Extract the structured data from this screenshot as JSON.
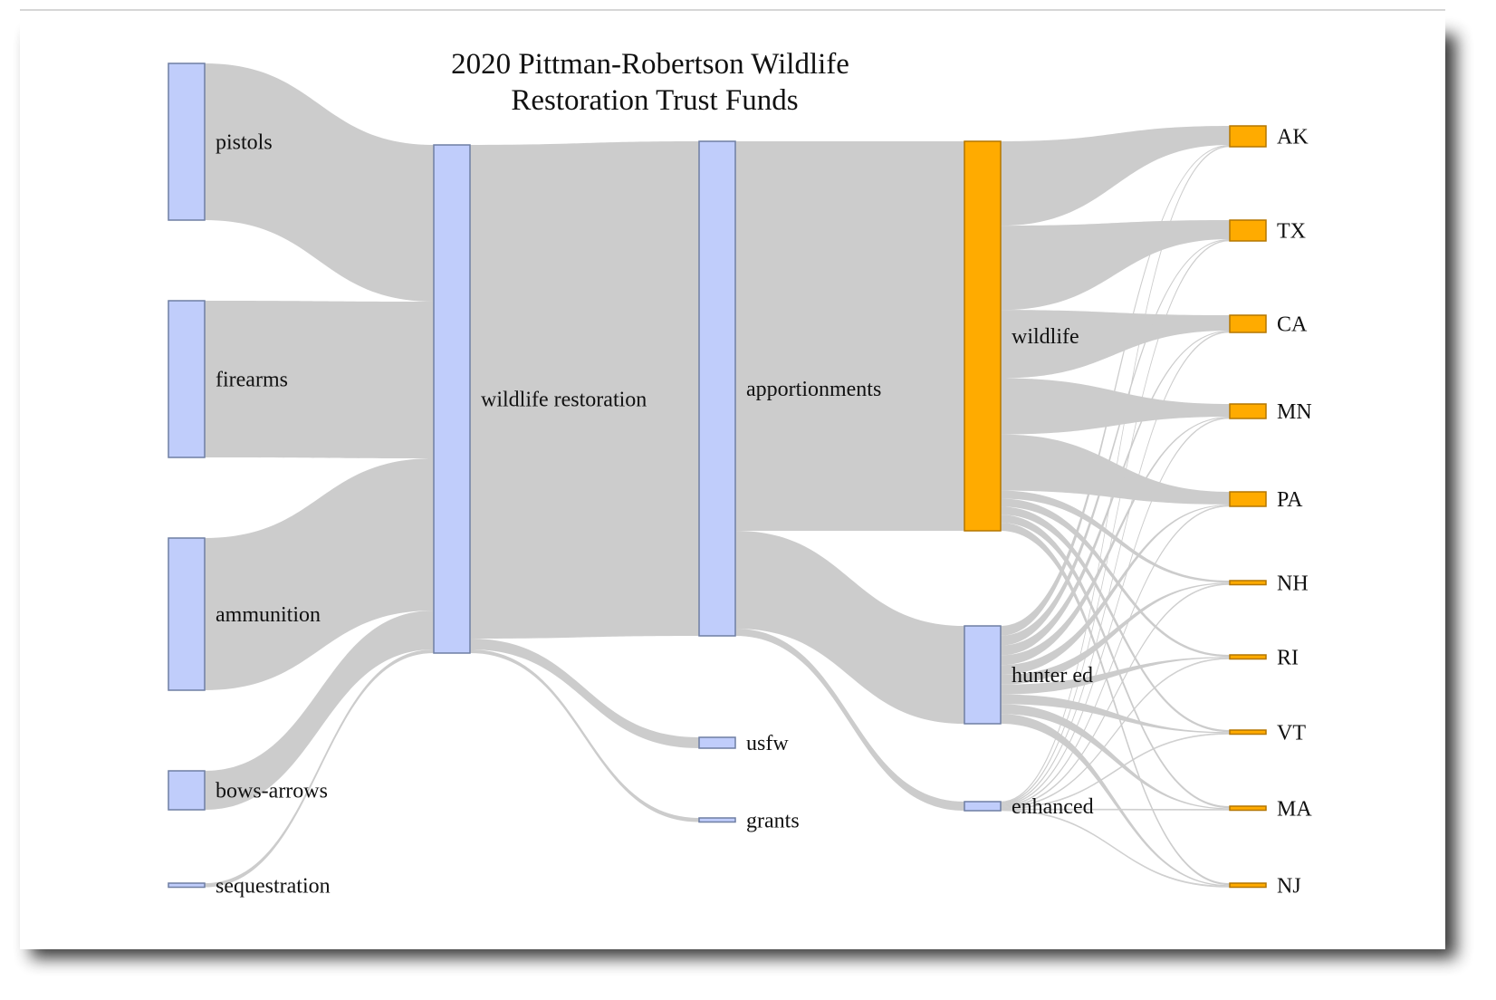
{
  "chart_data": {
    "type": "sankey",
    "title_lines": [
      "2020 Pittman-Robertson Wildlife",
      "Restoration Trust Funds"
    ],
    "colors": {
      "default_node": "#c0cdfb",
      "default_stroke": "#6f7fa3",
      "state_node": "#ffab00",
      "state_stroke": "#b47600",
      "link": "#cccccc"
    },
    "nodes": [
      {
        "id": "pistols",
        "label": "pistols",
        "color": "#c0cdfb"
      },
      {
        "id": "firearms",
        "label": "firearms",
        "color": "#c0cdfb"
      },
      {
        "id": "ammunition",
        "label": "ammunition",
        "color": "#c0cdfb"
      },
      {
        "id": "bows-arrows",
        "label": "bows-arrows",
        "color": "#c0cdfb"
      },
      {
        "id": "sequestration",
        "label": "sequestration",
        "color": "#c0cdfb"
      },
      {
        "id": "wildlife-restoration",
        "label": "wildlife restoration",
        "color": "#c0cdfb"
      },
      {
        "id": "apportionments",
        "label": "apportionments",
        "color": "#c0cdfb"
      },
      {
        "id": "usfw",
        "label": "usfw",
        "color": "#c0cdfb"
      },
      {
        "id": "grants",
        "label": "grants",
        "color": "#c0cdfb"
      },
      {
        "id": "wildlife",
        "label": "wildlife",
        "color": "#ffab00"
      },
      {
        "id": "hunter-ed",
        "label": "hunter ed",
        "color": "#c0cdfb"
      },
      {
        "id": "enhanced",
        "label": "enhanced",
        "color": "#c0cdfb"
      },
      {
        "id": "AK",
        "label": "AK",
        "color": "#ffab00"
      },
      {
        "id": "TX",
        "label": "TX",
        "color": "#ffab00"
      },
      {
        "id": "CA",
        "label": "CA",
        "color": "#ffab00"
      },
      {
        "id": "MN",
        "label": "MN",
        "color": "#ffab00"
      },
      {
        "id": "PA",
        "label": "PA",
        "color": "#ffab00"
      },
      {
        "id": "NH",
        "label": "NH",
        "color": "#ffab00"
      },
      {
        "id": "RI",
        "label": "RI",
        "color": "#ffab00"
      },
      {
        "id": "VT",
        "label": "VT",
        "color": "#ffab00"
      },
      {
        "id": "MA",
        "label": "MA",
        "color": "#ffab00"
      },
      {
        "id": "NJ",
        "label": "NJ",
        "color": "#ffab00"
      }
    ],
    "links": [
      {
        "source": "pistols",
        "target": "wildlife-restoration",
        "value": 173
      },
      {
        "source": "firearms",
        "target": "wildlife-restoration",
        "value": 173
      },
      {
        "source": "ammunition",
        "target": "wildlife-restoration",
        "value": 168
      },
      {
        "source": "bows-arrows",
        "target": "wildlife-restoration",
        "value": 43
      },
      {
        "source": "sequestration",
        "target": "wildlife-restoration",
        "value": 4
      },
      {
        "source": "wildlife-restoration",
        "target": "apportionments",
        "value": 544
      },
      {
        "source": "wildlife-restoration",
        "target": "usfw",
        "value": 12
      },
      {
        "source": "wildlife-restoration",
        "target": "grants",
        "value": 4
      },
      {
        "source": "apportionments",
        "target": "wildlife",
        "value": 430
      },
      {
        "source": "apportionments",
        "target": "hunter-ed",
        "value": 108
      },
      {
        "source": "apportionments",
        "target": "enhanced",
        "value": 8
      },
      {
        "source": "wildlife",
        "target": "AK",
        "value": 21
      },
      {
        "source": "wildlife",
        "target": "TX",
        "value": 21
      },
      {
        "source": "wildlife",
        "target": "CA",
        "value": 17
      },
      {
        "source": "wildlife",
        "target": "MN",
        "value": 14
      },
      {
        "source": "wildlife",
        "target": "PA",
        "value": 14
      },
      {
        "source": "wildlife",
        "target": "NH",
        "value": 2
      },
      {
        "source": "wildlife",
        "target": "RI",
        "value": 2
      },
      {
        "source": "wildlife",
        "target": "VT",
        "value": 2
      },
      {
        "source": "wildlife",
        "target": "MA",
        "value": 2
      },
      {
        "source": "wildlife",
        "target": "NJ",
        "value": 2
      },
      {
        "source": "hunter-ed",
        "target": "AK",
        "value": 1
      },
      {
        "source": "hunter-ed",
        "target": "TX",
        "value": 1
      },
      {
        "source": "hunter-ed",
        "target": "CA",
        "value": 1
      },
      {
        "source": "hunter-ed",
        "target": "MN",
        "value": 1
      },
      {
        "source": "hunter-ed",
        "target": "PA",
        "value": 1
      },
      {
        "source": "hunter-ed",
        "target": "NH",
        "value": 1
      },
      {
        "source": "hunter-ed",
        "target": "RI",
        "value": 1
      },
      {
        "source": "hunter-ed",
        "target": "VT",
        "value": 1
      },
      {
        "source": "hunter-ed",
        "target": "MA",
        "value": 1
      },
      {
        "source": "hunter-ed",
        "target": "NJ",
        "value": 1
      },
      {
        "source": "enhanced",
        "target": "AK",
        "value": 1
      },
      {
        "source": "enhanced",
        "target": "TX",
        "value": 1
      },
      {
        "source": "enhanced",
        "target": "CA",
        "value": 1
      },
      {
        "source": "enhanced",
        "target": "MN",
        "value": 1
      },
      {
        "source": "enhanced",
        "target": "PA",
        "value": 1
      },
      {
        "source": "enhanced",
        "target": "NH",
        "value": 1
      },
      {
        "source": "enhanced",
        "target": "RI",
        "value": 1
      },
      {
        "source": "enhanced",
        "target": "VT",
        "value": 1
      },
      {
        "source": "enhanced",
        "target": "MA",
        "value": 1
      },
      {
        "source": "enhanced",
        "target": "NJ",
        "value": 1
      }
    ]
  }
}
